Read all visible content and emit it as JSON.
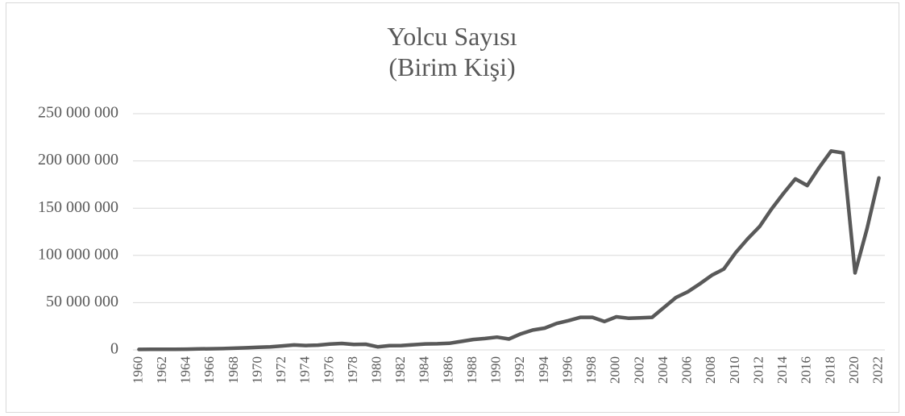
{
  "chart_data": {
    "type": "line",
    "title": "Yolcu Sayısı",
    "subtitle": "(Birim Kişi)",
    "categories": [
      "1960",
      null,
      "1962",
      null,
      "1964",
      null,
      "1966",
      null,
      "1968",
      null,
      "1970",
      null,
      "1972",
      null,
      "1974",
      null,
      "1976",
      null,
      "1978",
      null,
      "1980",
      null,
      "1982",
      null,
      "1984",
      null,
      "1986",
      null,
      "1988",
      null,
      "1990",
      null,
      "1992",
      null,
      "1994",
      null,
      "1996",
      null,
      "1998",
      null,
      "2000",
      null,
      "2002",
      null,
      "2004",
      null,
      "2006",
      null,
      "2008",
      null,
      "2010",
      null,
      "2012",
      null,
      "2014",
      null,
      "2016",
      null,
      "2018",
      null,
      "2020",
      null,
      "2022"
    ],
    "series": [
      {
        "color": "#595959",
        "values": [
          500000,
          600000,
          700000,
          700000,
          800000,
          1000000,
          1200000,
          1400000,
          1800000,
          2200000,
          2700000,
          3200000,
          4200000,
          5200000,
          4600000,
          5000000,
          6200000,
          6800000,
          5800000,
          6000000,
          3200000,
          4500000,
          4600000,
          5500000,
          6300000,
          6500000,
          7000000,
          9000000,
          11000000,
          12000000,
          13500000,
          11500000,
          17000000,
          21000000,
          23000000,
          28000000,
          31000000,
          34500000,
          34500000,
          30000000,
          35000000,
          33500000,
          34000000,
          34500000,
          45000000,
          55500000,
          61500000,
          70000000,
          79000000,
          85500000,
          103000000,
          117500000,
          130500000,
          149000000,
          165500000,
          181000000,
          174000000,
          193000000,
          210500000,
          208500000,
          81500000,
          128000000,
          182000000
        ]
      }
    ],
    "ylim": [
      0,
      250000000
    ],
    "yticks": [
      {
        "value": 0,
        "label": "0"
      },
      {
        "value": 50000000,
        "label": "50 000 000"
      },
      {
        "value": 100000000,
        "label": "100 000 000"
      },
      {
        "value": 150000000,
        "label": "150 000 000"
      },
      {
        "value": 200000000,
        "label": "200 000 000"
      },
      {
        "value": 250000000,
        "label": "250 000 000"
      }
    ],
    "grid": true
  }
}
